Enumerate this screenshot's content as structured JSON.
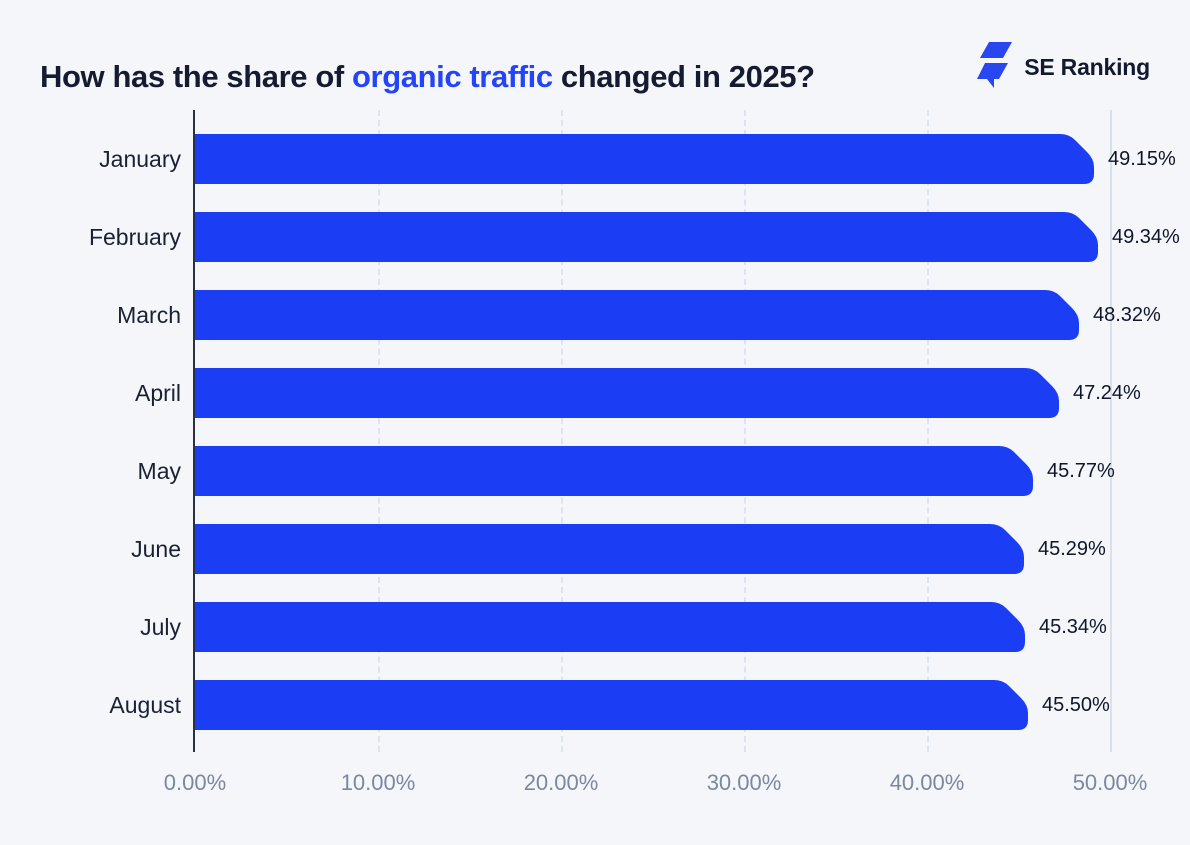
{
  "header": {
    "title_prefix": "How has the share of ",
    "title_highlight": "organic traffic",
    "title_suffix": " changed in 2025?",
    "brand": "SE Ranking"
  },
  "colors": {
    "background": "#f5f6fa",
    "bar": "#1b3ef5",
    "title_text": "#151b30",
    "title_highlight": "#2444f8",
    "axis_line": "#2a3142",
    "gridline": "#dde3f0",
    "tick_label": "#7c87a0",
    "value_label": "#10162a",
    "logo_blue": "#2847f0"
  },
  "chart_data": {
    "type": "bar",
    "orientation": "horizontal",
    "title": "How has the share of organic traffic changed in 2025?",
    "categories": [
      "January",
      "February",
      "March",
      "April",
      "May",
      "June",
      "July",
      "August"
    ],
    "values": [
      49.15,
      49.34,
      48.32,
      47.24,
      45.77,
      45.29,
      45.34,
      45.5
    ],
    "value_labels": [
      "49.15%",
      "49.34%",
      "48.32%",
      "47.24%",
      "45.77%",
      "45.29%",
      "45.34%",
      "45.50%"
    ],
    "x_ticks": [
      "0.00%",
      "10.00%",
      "20.00%",
      "30.00%",
      "40.00%",
      "50.00%"
    ],
    "x_tick_values": [
      0,
      10,
      20,
      30,
      40,
      50
    ],
    "xlim": [
      0,
      50
    ],
    "grid": "vertical-dashed",
    "legend": "none",
    "unit": "%"
  }
}
